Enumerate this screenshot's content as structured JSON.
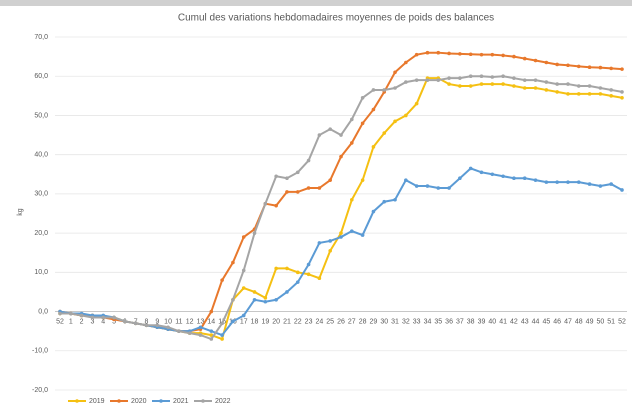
{
  "chart_data": {
    "type": "line",
    "title": "Cumul des variations hebdomadaires moyennes de poids des balances",
    "y_label": "kg",
    "categories": [
      "52",
      "1",
      "2",
      "3",
      "4",
      "5",
      "6",
      "7",
      "8",
      "9",
      "10",
      "11",
      "12",
      "13",
      "14",
      "15",
      "16",
      "17",
      "18",
      "19",
      "20",
      "21",
      "22",
      "23",
      "24",
      "25",
      "26",
      "27",
      "28",
      "29",
      "30",
      "31",
      "32",
      "33",
      "34",
      "35",
      "36",
      "37",
      "38",
      "39",
      "40",
      "41",
      "42",
      "43",
      "44",
      "45",
      "46",
      "47",
      "48",
      "49",
      "50",
      "51",
      "52"
    ],
    "ylim": [
      -20,
      70
    ],
    "yticks": [
      {
        "value": -20,
        "label": "-20,0"
      },
      {
        "value": -10,
        "label": "-10,0"
      },
      {
        "value": 0,
        "label": "0,0"
      },
      {
        "value": 10,
        "label": "10,0"
      },
      {
        "value": 20,
        "label": "20,0"
      },
      {
        "value": 30,
        "label": "30,0"
      },
      {
        "value": 40,
        "label": "40,0"
      },
      {
        "value": 50,
        "label": "50,0"
      },
      {
        "value": 60,
        "label": "60,0"
      },
      {
        "value": 70,
        "label": "70,0"
      }
    ],
    "grid": true,
    "legend": "bottom-left",
    "series": [
      {
        "name": "2019",
        "color": "#f5c012",
        "values": [
          -0.5,
          -0.5,
          -1,
          -1,
          -1.5,
          -1.5,
          -2.5,
          -3,
          -3.5,
          -4,
          -4.5,
          -5,
          -5.5,
          -5.5,
          -6,
          -7,
          3,
          6,
          5,
          3.5,
          11,
          11,
          10,
          9.5,
          8.5,
          15.5,
          20,
          28.5,
          33.5,
          42,
          45.5,
          48.5,
          50,
          53,
          59.5,
          59.5,
          58,
          57.5,
          57.5,
          58,
          58,
          58,
          57.5,
          57,
          57,
          56.5,
          56,
          55.5,
          55.5,
          55.5,
          55.5,
          55,
          54.5
        ]
      },
      {
        "name": "2020",
        "color": "#e8782c",
        "values": [
          0,
          -0.5,
          -1,
          -1,
          -1.5,
          -2,
          -2.5,
          -3,
          -3.5,
          -4,
          -4.5,
          -5,
          -5,
          -4.5,
          0,
          8,
          12.5,
          19,
          21,
          27.5,
          27,
          30.5,
          30.5,
          31.5,
          31.5,
          33.5,
          39.5,
          43,
          48,
          51.5,
          56,
          61,
          63.5,
          65.5,
          66,
          66,
          65.8,
          65.7,
          65.6,
          65.5,
          65.5,
          65.3,
          65,
          64.5,
          64,
          63.5,
          63,
          62.8,
          62.5,
          62.3,
          62.2,
          62,
          61.8
        ]
      },
      {
        "name": "2021",
        "color": "#5b9bd5",
        "values": [
          0,
          -0.5,
          -0.5,
          -1,
          -1,
          -1.5,
          -2.5,
          -3,
          -3.5,
          -4,
          -4.5,
          -5,
          -5,
          -4,
          -5,
          -6,
          -2.5,
          -1,
          3,
          2.5,
          3,
          5,
          7.5,
          12,
          17.5,
          18,
          19,
          20.5,
          19.5,
          25.5,
          28,
          28.5,
          33.5,
          32,
          32,
          31.5,
          31.5,
          34,
          36.5,
          35.5,
          35,
          34.5,
          34,
          34,
          33.5,
          33,
          33,
          33,
          33,
          32.5,
          32,
          32.5,
          31
        ]
      },
      {
        "name": "2022",
        "color": "#a5a5a5",
        "values": [
          -0.5,
          -0.5,
          -1,
          -1.5,
          -1.5,
          -1.5,
          -2.5,
          -3,
          -3.5,
          -3.5,
          -4,
          -5,
          -5.5,
          -6,
          -7,
          -3,
          3,
          10.5,
          20,
          27.5,
          34.5,
          34,
          35.5,
          38.5,
          45,
          46.5,
          45,
          49,
          54.5,
          56.5,
          56.5,
          57,
          58.5,
          59,
          59,
          59,
          59.5,
          59.5,
          60,
          60,
          59.8,
          60,
          59.5,
          59,
          59,
          58.5,
          58,
          58,
          57.5,
          57.5,
          57,
          56.5,
          56
        ]
      }
    ]
  }
}
